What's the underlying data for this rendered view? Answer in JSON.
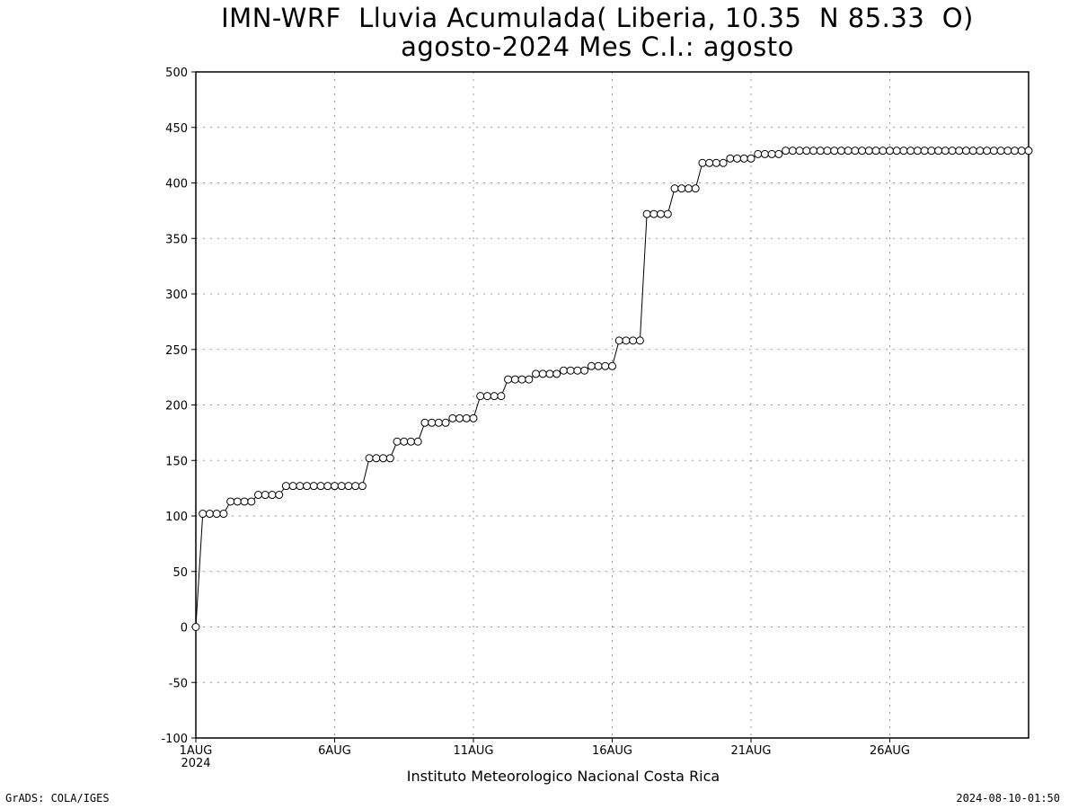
{
  "page": {
    "title_line1": "IMN-WRF  Lluvia Acumulada( Liberia, 10.35  N 85.33  O)",
    "title_line2": "agosto-2024 Mes C.I.: agosto",
    "footer": "Instituto Meteorologico Nacional Costa Rica",
    "left_credit": "GrADS: COLA/IGES",
    "right_credit": "2024-08-10-01:50"
  },
  "chart_data": {
    "type": "line",
    "title": "IMN-WRF  Lluvia Acumulada( Liberia, 10.35  N 85.33  O)",
    "subtitle": "agosto-2024 Mes C.I.: agosto",
    "xlabel": "",
    "ylabel": "",
    "xlim": [
      1,
      31
    ],
    "ylim": [
      -100,
      500
    ],
    "yticks": [
      -100,
      -50,
      0,
      50,
      100,
      150,
      200,
      250,
      300,
      350,
      400,
      450,
      500
    ],
    "xticks": [
      {
        "day": 1,
        "label": "1AUG",
        "sublabel": "2024"
      },
      {
        "day": 6,
        "label": "6AUG",
        "sublabel": ""
      },
      {
        "day": 11,
        "label": "11AUG",
        "sublabel": ""
      },
      {
        "day": 16,
        "label": "16AUG",
        "sublabel": ""
      },
      {
        "day": 21,
        "label": "21AUG",
        "sublabel": ""
      },
      {
        "day": 26,
        "label": "26AUG",
        "sublabel": ""
      }
    ],
    "grid": true,
    "step_days": 0.25,
    "values": [
      0,
      102,
      102,
      102,
      102,
      113,
      113,
      113,
      113,
      119,
      119,
      119,
      119,
      127,
      127,
      127,
      127,
      127,
      127,
      127,
      127,
      127,
      127,
      127,
      127,
      152,
      152,
      152,
      152,
      167,
      167,
      167,
      167,
      184,
      184,
      184,
      184,
      188,
      188,
      188,
      188,
      208,
      208,
      208,
      208,
      223,
      223,
      223,
      223,
      228,
      228,
      228,
      228,
      231,
      231,
      231,
      231,
      235,
      235,
      235,
      235,
      258,
      258,
      258,
      258,
      372,
      372,
      372,
      372,
      395,
      395,
      395,
      395,
      418,
      418,
      418,
      418,
      422,
      422,
      422,
      422,
      426,
      426,
      426,
      426,
      429,
      429,
      429,
      429,
      429,
      429,
      429,
      429,
      429,
      429,
      429,
      429,
      429,
      429,
      429,
      429,
      429,
      429,
      429,
      429,
      429,
      429,
      429,
      429,
      429,
      429,
      429,
      429,
      429,
      429,
      429,
      429,
      429,
      429,
      429,
      429
    ]
  }
}
